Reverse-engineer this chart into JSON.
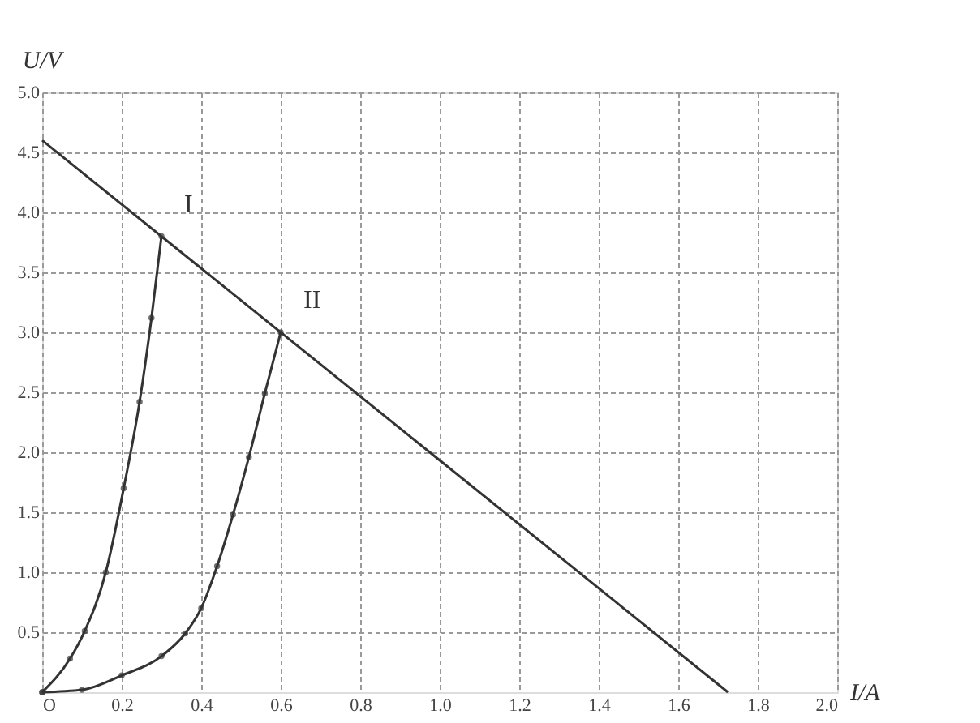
{
  "chart_data": {
    "type": "line",
    "xlabel": "I/A",
    "ylabel": "U/V",
    "xlim": [
      0,
      2.0
    ],
    "ylim": [
      0,
      5.0
    ],
    "xticks": [
      {
        "value": 0,
        "label": "O"
      },
      0.2,
      0.4,
      0.6,
      0.8,
      {
        "value": 1,
        "label": "1.0"
      },
      1.2,
      1.4,
      1.6,
      1.8,
      {
        "value": 2,
        "label": "2.0"
      }
    ],
    "yticks": [
      0.5,
      {
        "value": 1,
        "label": "1.0"
      },
      1.5,
      {
        "value": 2,
        "label": "2.0"
      },
      2.5,
      {
        "value": 3,
        "label": "3.0"
      },
      3.5,
      {
        "value": 4,
        "label": "4.0"
      },
      4.5,
      {
        "value": 5,
        "label": "5.0"
      }
    ],
    "grid": true,
    "marker": "circle",
    "line_style": "solid",
    "series": [
      {
        "color": "#333333",
        "x": [
          0,
          1.725
        ],
        "values": [
          4.6,
          0
        ],
        "marker": "none"
      },
      {
        "name": "I",
        "color": "#333333",
        "x": [
          0,
          0.07,
          0.107,
          0.16,
          0.205,
          0.245,
          0.275,
          0.3
        ],
        "values": [
          0,
          0.28,
          0.51,
          1.0,
          1.7,
          2.42,
          3.12,
          3.8
        ]
      },
      {
        "name": "II",
        "color": "#333333",
        "x": [
          0,
          0.1,
          0.2,
          0.3,
          0.36,
          0.4,
          0.44,
          0.48,
          0.52,
          0.56,
          0.6
        ],
        "values": [
          0,
          0.02,
          0.14,
          0.3,
          0.49,
          0.7,
          1.05,
          1.48,
          1.96,
          2.49,
          3.0
        ]
      }
    ]
  }
}
